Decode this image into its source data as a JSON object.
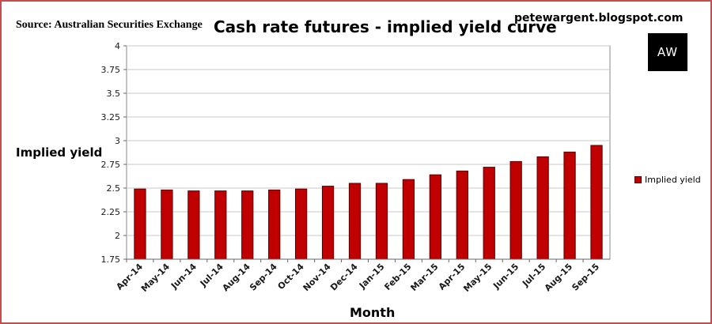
{
  "header": {
    "source": "Source: Australian Securities Exchange",
    "title": "Cash rate futures - implied yield curve",
    "site": "petewargent.blogspot.com",
    "logo_text": "AW"
  },
  "colors": {
    "frame_border": "#c0504d",
    "bar_fill": "#c00000",
    "bar_edge": "#5a0000",
    "grid": "#c8c8c8"
  },
  "chart_data": {
    "type": "bar",
    "title": "Cash rate futures - implied yield curve",
    "xlabel": "Month",
    "ylabel": "Implied yield",
    "categories": [
      "Apr-14",
      "May-14",
      "Jun-14",
      "Jul-14",
      "Aug-14",
      "Sep-14",
      "Oct-14",
      "Nov-14",
      "Dec-14",
      "Jan-15",
      "Feb-15",
      "Mar-15",
      "Apr-15",
      "May-15",
      "Jun-15",
      "Jul-15",
      "Aug-15",
      "Sep-15"
    ],
    "series": [
      {
        "name": "Implied yield",
        "values": [
          2.49,
          2.48,
          2.47,
          2.47,
          2.47,
          2.48,
          2.49,
          2.52,
          2.55,
          2.55,
          2.59,
          2.64,
          2.68,
          2.72,
          2.78,
          2.83,
          2.88,
          2.95
        ]
      }
    ],
    "ylim": [
      1.75,
      4
    ],
    "yticks": [
      "1.75",
      "2",
      "2.25",
      "2.5",
      "2.75",
      "3",
      "3.25",
      "3.5",
      "3.75",
      "4"
    ],
    "grid": true,
    "legend": "right"
  }
}
